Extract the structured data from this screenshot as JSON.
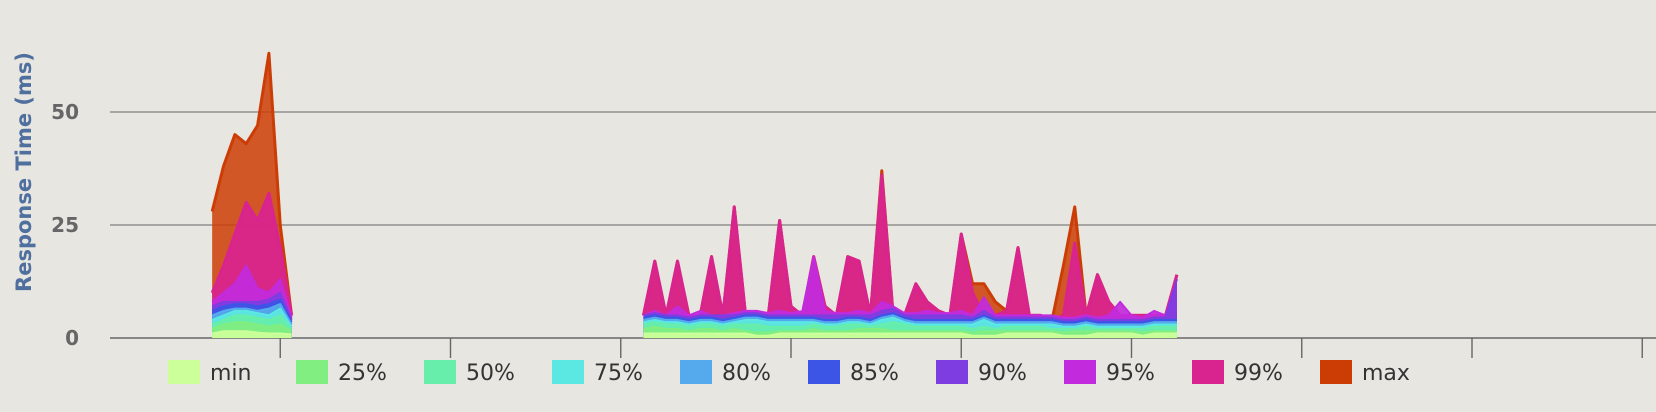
{
  "chart_data": {
    "type": "area",
    "title": "",
    "xlabel": "",
    "ylabel": "Response Time (ms)",
    "y_ticks": [
      0,
      25,
      50
    ],
    "ylim": [
      0,
      65
    ],
    "xlim": [
      0,
      140
    ],
    "grid": true,
    "legend_position": "bottom",
    "x_tick_positions": [
      15,
      30,
      45,
      60,
      75,
      90,
      105,
      120,
      135
    ],
    "segments": [
      {
        "x": [
          9,
          10,
          11,
          12,
          13,
          14,
          15,
          16
        ],
        "series": {
          "min": [
            1,
            1.5,
            1.5,
            1.5,
            1.2,
            1,
            1,
            0.8
          ],
          "25%": [
            2,
            3,
            3.5,
            3.5,
            3,
            2.5,
            3,
            1.5
          ],
          "50%": [
            3,
            4,
            5,
            5,
            4.5,
            4,
            5,
            2
          ],
          "75%": [
            4,
            5,
            6,
            6,
            5.5,
            5,
            6.5,
            2.5
          ],
          "80%": [
            5,
            6,
            6.5,
            6.5,
            6,
            6.5,
            7.5,
            3
          ],
          "85%": [
            6,
            7,
            7.5,
            7.5,
            7,
            7.5,
            8.5,
            3.5
          ],
          "90%": [
            7,
            8,
            8,
            8,
            8,
            8.5,
            10,
            4
          ],
          "95%": [
            8,
            10,
            12,
            16,
            11,
            10,
            13,
            4.5
          ],
          "99%": [
            10,
            16,
            23,
            30,
            26,
            32,
            20,
            5
          ],
          "max": [
            28,
            38,
            45,
            43,
            47,
            63,
            25,
            5
          ]
        }
      },
      {
        "x": [
          47,
          48,
          49,
          50,
          51,
          52,
          53,
          54,
          55,
          56,
          57,
          58,
          59,
          60,
          61,
          62,
          63,
          64,
          65,
          66,
          67,
          68,
          69,
          70,
          71,
          72,
          73,
          74,
          75,
          76,
          77,
          78,
          79,
          80,
          81,
          82,
          83,
          84,
          85,
          86,
          87,
          88,
          89,
          90,
          91,
          92,
          93,
          94
        ],
        "series": {
          "min": [
            1,
            1,
            1,
            1,
            1,
            1,
            1,
            1,
            1,
            1,
            0.5,
            0.5,
            1,
            1,
            1,
            1,
            1,
            1,
            1,
            1,
            1,
            1,
            1,
            1,
            1,
            1,
            1,
            1,
            1,
            0.5,
            0.5,
            0.5,
            1,
            1,
            1,
            1,
            1,
            0.5,
            0.5,
            0.5,
            1,
            1,
            1,
            1,
            0.5,
            1,
            1,
            1
          ],
          "25%": [
            2,
            2.5,
            2,
            2,
            1.5,
            2,
            2,
            1.5,
            2,
            1.5,
            1.2,
            1.2,
            1.5,
            1.5,
            1.5,
            2,
            1.5,
            1.5,
            1.5,
            2,
            2,
            2,
            1.5,
            1.5,
            1.5,
            1.5,
            1.5,
            1.5,
            1.5,
            1.2,
            1.5,
            1.5,
            1.5,
            1.5,
            1.5,
            1.5,
            1.5,
            1.2,
            1.5,
            1.5,
            1.5,
            1.5,
            1.5,
            1.5,
            1.2,
            1.5,
            1.5,
            1.5
          ],
          "50%": [
            3,
            3.5,
            3,
            3,
            2.5,
            3,
            3,
            2.5,
            3,
            3,
            3,
            2.5,
            2.5,
            2.5,
            2.5,
            3,
            2.5,
            2.5,
            3,
            3,
            2.5,
            3,
            3.5,
            3,
            2.5,
            2.5,
            2.5,
            2.5,
            2.5,
            2,
            2.5,
            2,
            2.5,
            2.5,
            2.5,
            2.5,
            2,
            2,
            2,
            2.5,
            2,
            2,
            2,
            2,
            2,
            2.5,
            2.5,
            2.5
          ],
          "75%": [
            3.5,
            4,
            3.5,
            3.5,
            3,
            3.5,
            3.5,
            3,
            3.5,
            4,
            4,
            3.5,
            3.5,
            3.5,
            3.5,
            3.5,
            3,
            3,
            3.5,
            3.5,
            3,
            4,
            4.5,
            3.5,
            3,
            3,
            3,
            3,
            3,
            3,
            4,
            3,
            3,
            3,
            3,
            3,
            3,
            2.5,
            2.5,
            3,
            2.5,
            2.5,
            2.5,
            2.5,
            2.5,
            3,
            3,
            3
          ],
          "80%": [
            4,
            4.5,
            4,
            4,
            3.5,
            4,
            4,
            3.5,
            4,
            4.5,
            4.5,
            4,
            4,
            4,
            4,
            4,
            3.5,
            3.5,
            4,
            4,
            3.5,
            4.5,
            5,
            4,
            3.5,
            3.5,
            3.5,
            3.5,
            3.5,
            3.5,
            4.5,
            3.5,
            3.5,
            3.5,
            3.5,
            3.5,
            3.5,
            3,
            3,
            3.5,
            3,
            3,
            3,
            3,
            3,
            3.5,
            3.5,
            3.5
          ],
          "85%": [
            4.5,
            5,
            4.5,
            4.5,
            4,
            4.5,
            4.5,
            4,
            4.5,
            5,
            5,
            4.5,
            4.5,
            4.5,
            4.5,
            4.5,
            4,
            4,
            4.5,
            4.5,
            4,
            5,
            5.5,
            4.5,
            4,
            4,
            4,
            4,
            4,
            4,
            5,
            4,
            4,
            4,
            4,
            4,
            4,
            3.5,
            3.5,
            4,
            3.5,
            3.5,
            3.5,
            3.5,
            3.5,
            4,
            4,
            4
          ],
          "90%": [
            5,
            5.5,
            5,
            5,
            4.5,
            5,
            5,
            5,
            5,
            5.5,
            5.5,
            5,
            5,
            5,
            5,
            5,
            5,
            5,
            5,
            5,
            5,
            6,
            6.5,
            5,
            5,
            5,
            5,
            5,
            5,
            4.5,
            6,
            4.5,
            4.5,
            4.5,
            4.5,
            4.5,
            4.5,
            4,
            4,
            4.5,
            4,
            4,
            4,
            4,
            4,
            4.5,
            4.5,
            13
          ],
          "95%": [
            5,
            6,
            5,
            7,
            5,
            6,
            5,
            5,
            5.5,
            6,
            6,
            5.5,
            6,
            5.5,
            6,
            18,
            6,
            5.5,
            5.5,
            6,
            5.5,
            8,
            7,
            5.5,
            5.5,
            6,
            5.5,
            5.5,
            6,
            5,
            9,
            5,
            5,
            5,
            5,
            5,
            5,
            4.5,
            4.5,
            5,
            4.5,
            5,
            8,
            5,
            4.5,
            6,
            5,
            13
          ],
          "99%": [
            5,
            17,
            5,
            17,
            5,
            5,
            18,
            5,
            29,
            5,
            5,
            5,
            26,
            7,
            5,
            18,
            7,
            5,
            18,
            17,
            5,
            36,
            5,
            5,
            12,
            8,
            6,
            5,
            23,
            10,
            5,
            5,
            6,
            20,
            5,
            5,
            4,
            5,
            21,
            5,
            14,
            8,
            5,
            5,
            5,
            5,
            5,
            14
          ],
          "max": [
            5,
            17,
            5,
            17,
            5,
            5,
            18,
            5,
            29,
            5,
            5,
            5,
            26,
            7,
            5,
            18,
            7,
            5,
            18,
            17,
            5,
            37,
            5,
            5,
            12,
            8,
            6,
            5,
            23,
            12,
            12,
            8,
            6,
            20,
            5,
            5,
            4,
            16,
            29,
            5,
            14,
            8,
            5,
            5,
            5,
            5,
            5,
            14
          ]
        }
      }
    ],
    "legend": [
      {
        "name": "min",
        "color": "#ccff99"
      },
      {
        "name": "25%",
        "color": "#80ee80"
      },
      {
        "name": "50%",
        "color": "#66eeaa"
      },
      {
        "name": "75%",
        "color": "#5ce8e2"
      },
      {
        "name": "80%",
        "color": "#55aaee"
      },
      {
        "name": "85%",
        "color": "#3d55e6"
      },
      {
        "name": "90%",
        "color": "#7e3de0"
      },
      {
        "name": "95%",
        "color": "#c22bdd"
      },
      {
        "name": "99%",
        "color": "#d9238f"
      },
      {
        "name": "max",
        "color": "#cc3d06"
      }
    ],
    "colors": {
      "background": "#e8e6e1",
      "grid": "#666666",
      "axis_label": "#4f6f9f"
    }
  }
}
